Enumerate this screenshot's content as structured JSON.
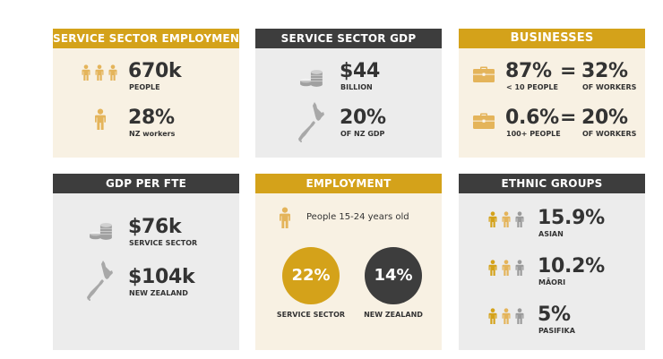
{
  "colors": {
    "gold": "#d4a21a",
    "dark": "#3d3d3d",
    "cream": "#f8f1e3",
    "grey": "#ececec",
    "icon_grey": "#9a9a9a"
  },
  "service_employment": {
    "title": "SERVICE SECTOR EMPLOYMENT",
    "stat1": {
      "value": "670k",
      "label": "PEOPLE"
    },
    "stat2": {
      "value": "28%",
      "label": "NZ workers"
    }
  },
  "service_gdp": {
    "title": "SERVICE SECTOR GDP",
    "stat1": {
      "value": "$44",
      "label": "BILLION"
    },
    "stat2": {
      "value": "20%",
      "label": "OF NZ GDP"
    }
  },
  "businesses": {
    "title": "BUSINESSES",
    "row1": {
      "left_value": "87%",
      "left_label": "< 10 PEOPLE",
      "equals": "=",
      "right_value": "32%",
      "right_label": "OF WORKERS"
    },
    "row2": {
      "left_value": "0.6%",
      "left_label": "100+ PEOPLE",
      "equals": "=",
      "right_value": "20%",
      "right_label": "OF WORKERS"
    }
  },
  "gdp_per_fte": {
    "title": "GDP PER FTE",
    "stat1": {
      "value": "$76k",
      "label": "SERVICE SECTOR"
    },
    "stat2": {
      "value": "$104k",
      "label": "NEW ZEALAND"
    }
  },
  "employment": {
    "title": "EMPLOYMENT",
    "subtitle": "People 15-24 years old",
    "circle1": {
      "value": "22%",
      "label": "SERVICE SECTOR"
    },
    "circle2": {
      "value": "14%",
      "label": "NEW ZEALAND"
    }
  },
  "ethnic_groups": {
    "title": "ETHNIC GROUPS",
    "rows": [
      {
        "value": "15.9%",
        "label": "ASIAN"
      },
      {
        "value": "10.2%",
        "label": "MĀORI"
      },
      {
        "value": "5%",
        "label": "PASIFIKA"
      }
    ]
  }
}
